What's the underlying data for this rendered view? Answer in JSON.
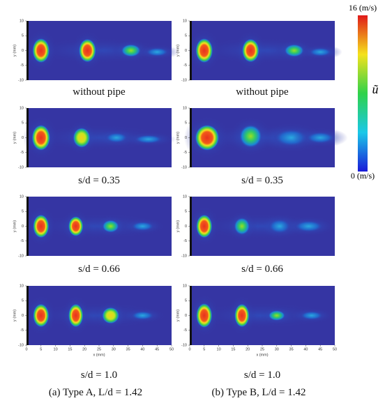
{
  "colorbar": {
    "max_label": "16 (m/s)",
    "min_label": "0 (m/s)",
    "symbol": "ũ"
  },
  "y_axis": {
    "label": "y (mm)",
    "ticks": [
      10,
      5,
      0,
      -5,
      -10
    ]
  },
  "x_axis": {
    "label": "x (mm)",
    "ticks": [
      0,
      5,
      10,
      15,
      20,
      25,
      30,
      35,
      40,
      45,
      50
    ]
  },
  "columns": [
    {
      "caption": "(a) Type A, L/d = 1.42",
      "panels": [
        "without pipe",
        "s/d = 0.35",
        "s/d = 0.66",
        "s/d = 1.0"
      ]
    },
    {
      "caption": "(b)   Type B, L/d = 1.42",
      "panels": [
        "without pipe",
        "s/d = 0.35",
        "s/d = 0.66",
        "s/d = 1.0"
      ]
    }
  ]
}
